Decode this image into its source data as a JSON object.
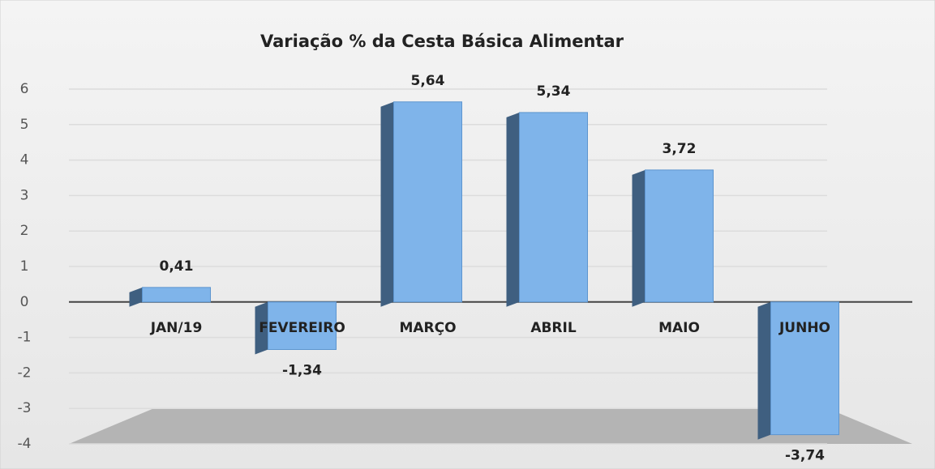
{
  "chart_data": {
    "type": "bar",
    "title": "Variação % da Cesta Básica Alimentar",
    "categories": [
      "JAN/19",
      "FEVEREIRO",
      "MARÇO",
      "ABRIL",
      "MAIO",
      "JUNHO"
    ],
    "values": [
      0.41,
      -1.34,
      5.64,
      5.34,
      3.72,
      -3.74
    ],
    "value_labels": [
      "0,41",
      "-1,34",
      "5,64",
      "5,34",
      "3,72",
      "-3,74"
    ],
    "color": "#7fb4ea",
    "ylim": [
      -4,
      6
    ],
    "yticks": [
      -4,
      -3,
      -2,
      -1,
      0,
      1,
      2,
      3,
      4,
      5,
      6
    ],
    "grid": true
  }
}
